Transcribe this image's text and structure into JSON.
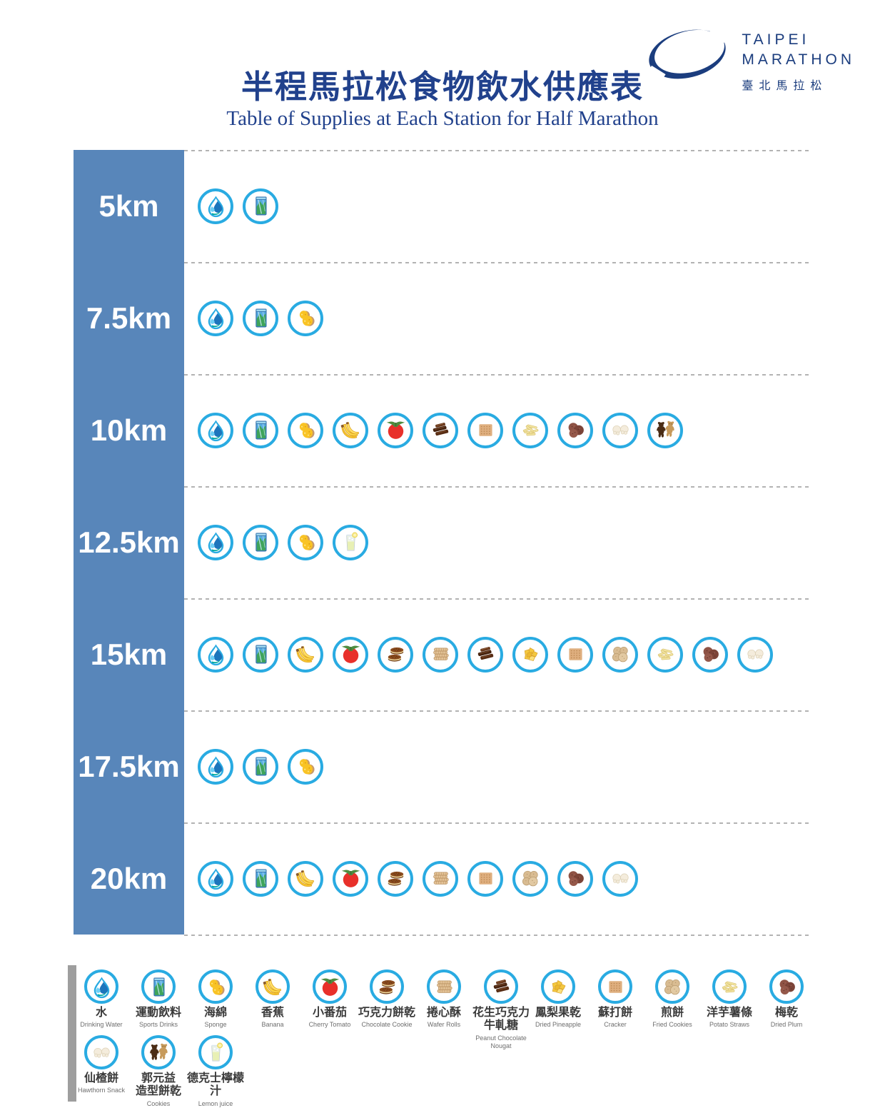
{
  "header": {
    "title_zh": "半程馬拉松食物飲水供應表",
    "title_en": "Table of Supplies at Each Station for Half Marathon"
  },
  "logo": {
    "name_line1": "TAIPEI",
    "name_line2": "MARATHON",
    "name_zh": "臺北馬拉松"
  },
  "colors": {
    "navy": "#21418C",
    "logo_navy": "#1B3D7E",
    "sidebar_blue": "#5886BA",
    "circle_cyan": "#29ABE2",
    "dash_gray": "#B3B3B3",
    "legend_bar_gray": "#9E9E9E",
    "label_dark": "#3A3A3A",
    "label_gray": "#6E6E6E"
  },
  "supplies": {
    "water": {
      "zh": "水",
      "en": "Drinking Water"
    },
    "sports_drink": {
      "zh": "運動飲料",
      "en": "Sports Drinks"
    },
    "sponge": {
      "zh": "海綿",
      "en": "Sponge"
    },
    "banana": {
      "zh": "香蕉",
      "en": "Banana"
    },
    "cherry_tomato": {
      "zh": "小番茄",
      "en": "Cherry Tomato"
    },
    "chocolate_cookie": {
      "zh": "巧克力餅乾",
      "en": "Chocolate Cookie"
    },
    "wafer_rolls": {
      "zh": "捲心酥",
      "en": "Wafer Rolls"
    },
    "nougat": {
      "zh": "花生巧克力\n牛軋糖",
      "en": "Peanut Chocolate\nNougat"
    },
    "dried_pineapple": {
      "zh": "鳳梨果乾",
      "en": "Dried Pineapple"
    },
    "cracker": {
      "zh": "蘇打餅",
      "en": "Cracker"
    },
    "fried_cookie": {
      "zh": "煎餅",
      "en": "Fried Cookies"
    },
    "potato_straws": {
      "zh": "洋芋薯條",
      "en": "Potato Straws"
    },
    "dried_plum": {
      "zh": "梅乾",
      "en": "Dried Plum"
    },
    "hawthorn": {
      "zh": "仙楂餅",
      "en": "Hawthorn Snack"
    },
    "bear_cookies": {
      "zh": "郭元益\n造型餅乾",
      "en": "Cookies"
    },
    "lemon_juice": {
      "zh": "德克士檸檬汁",
      "en": "Lemon juice"
    }
  },
  "stations": [
    {
      "label": "5km",
      "items": [
        "water",
        "sports_drink"
      ]
    },
    {
      "label": "7.5km",
      "items": [
        "water",
        "sports_drink",
        "sponge"
      ]
    },
    {
      "label": "10km",
      "items": [
        "water",
        "sports_drink",
        "sponge",
        "banana",
        "cherry_tomato",
        "nougat",
        "cracker",
        "potato_straws",
        "dried_plum",
        "hawthorn",
        "bear_cookies"
      ]
    },
    {
      "label": "12.5km",
      "items": [
        "water",
        "sports_drink",
        "sponge",
        "lemon_juice"
      ]
    },
    {
      "label": "15km",
      "items": [
        "water",
        "sports_drink",
        "banana",
        "cherry_tomato",
        "chocolate_cookie",
        "wafer_rolls",
        "nougat",
        "dried_pineapple",
        "cracker",
        "fried_cookie",
        "potato_straws",
        "dried_plum",
        "hawthorn"
      ]
    },
    {
      "label": "17.5km",
      "items": [
        "water",
        "sports_drink",
        "sponge"
      ]
    },
    {
      "label": "20km",
      "items": [
        "water",
        "sports_drink",
        "banana",
        "cherry_tomato",
        "chocolate_cookie",
        "wafer_rolls",
        "cracker",
        "fried_cookie",
        "dried_plum",
        "hawthorn"
      ]
    }
  ],
  "legend": {
    "rows": [
      [
        "water",
        "sports_drink",
        "sponge",
        "banana",
        "cherry_tomato",
        "chocolate_cookie",
        "wafer_rolls",
        "nougat",
        "dried_pineapple",
        "cracker",
        "fried_cookie",
        "potato_straws",
        "dried_plum"
      ],
      [
        "hawthorn",
        "bear_cookies",
        "lemon_juice"
      ]
    ]
  }
}
